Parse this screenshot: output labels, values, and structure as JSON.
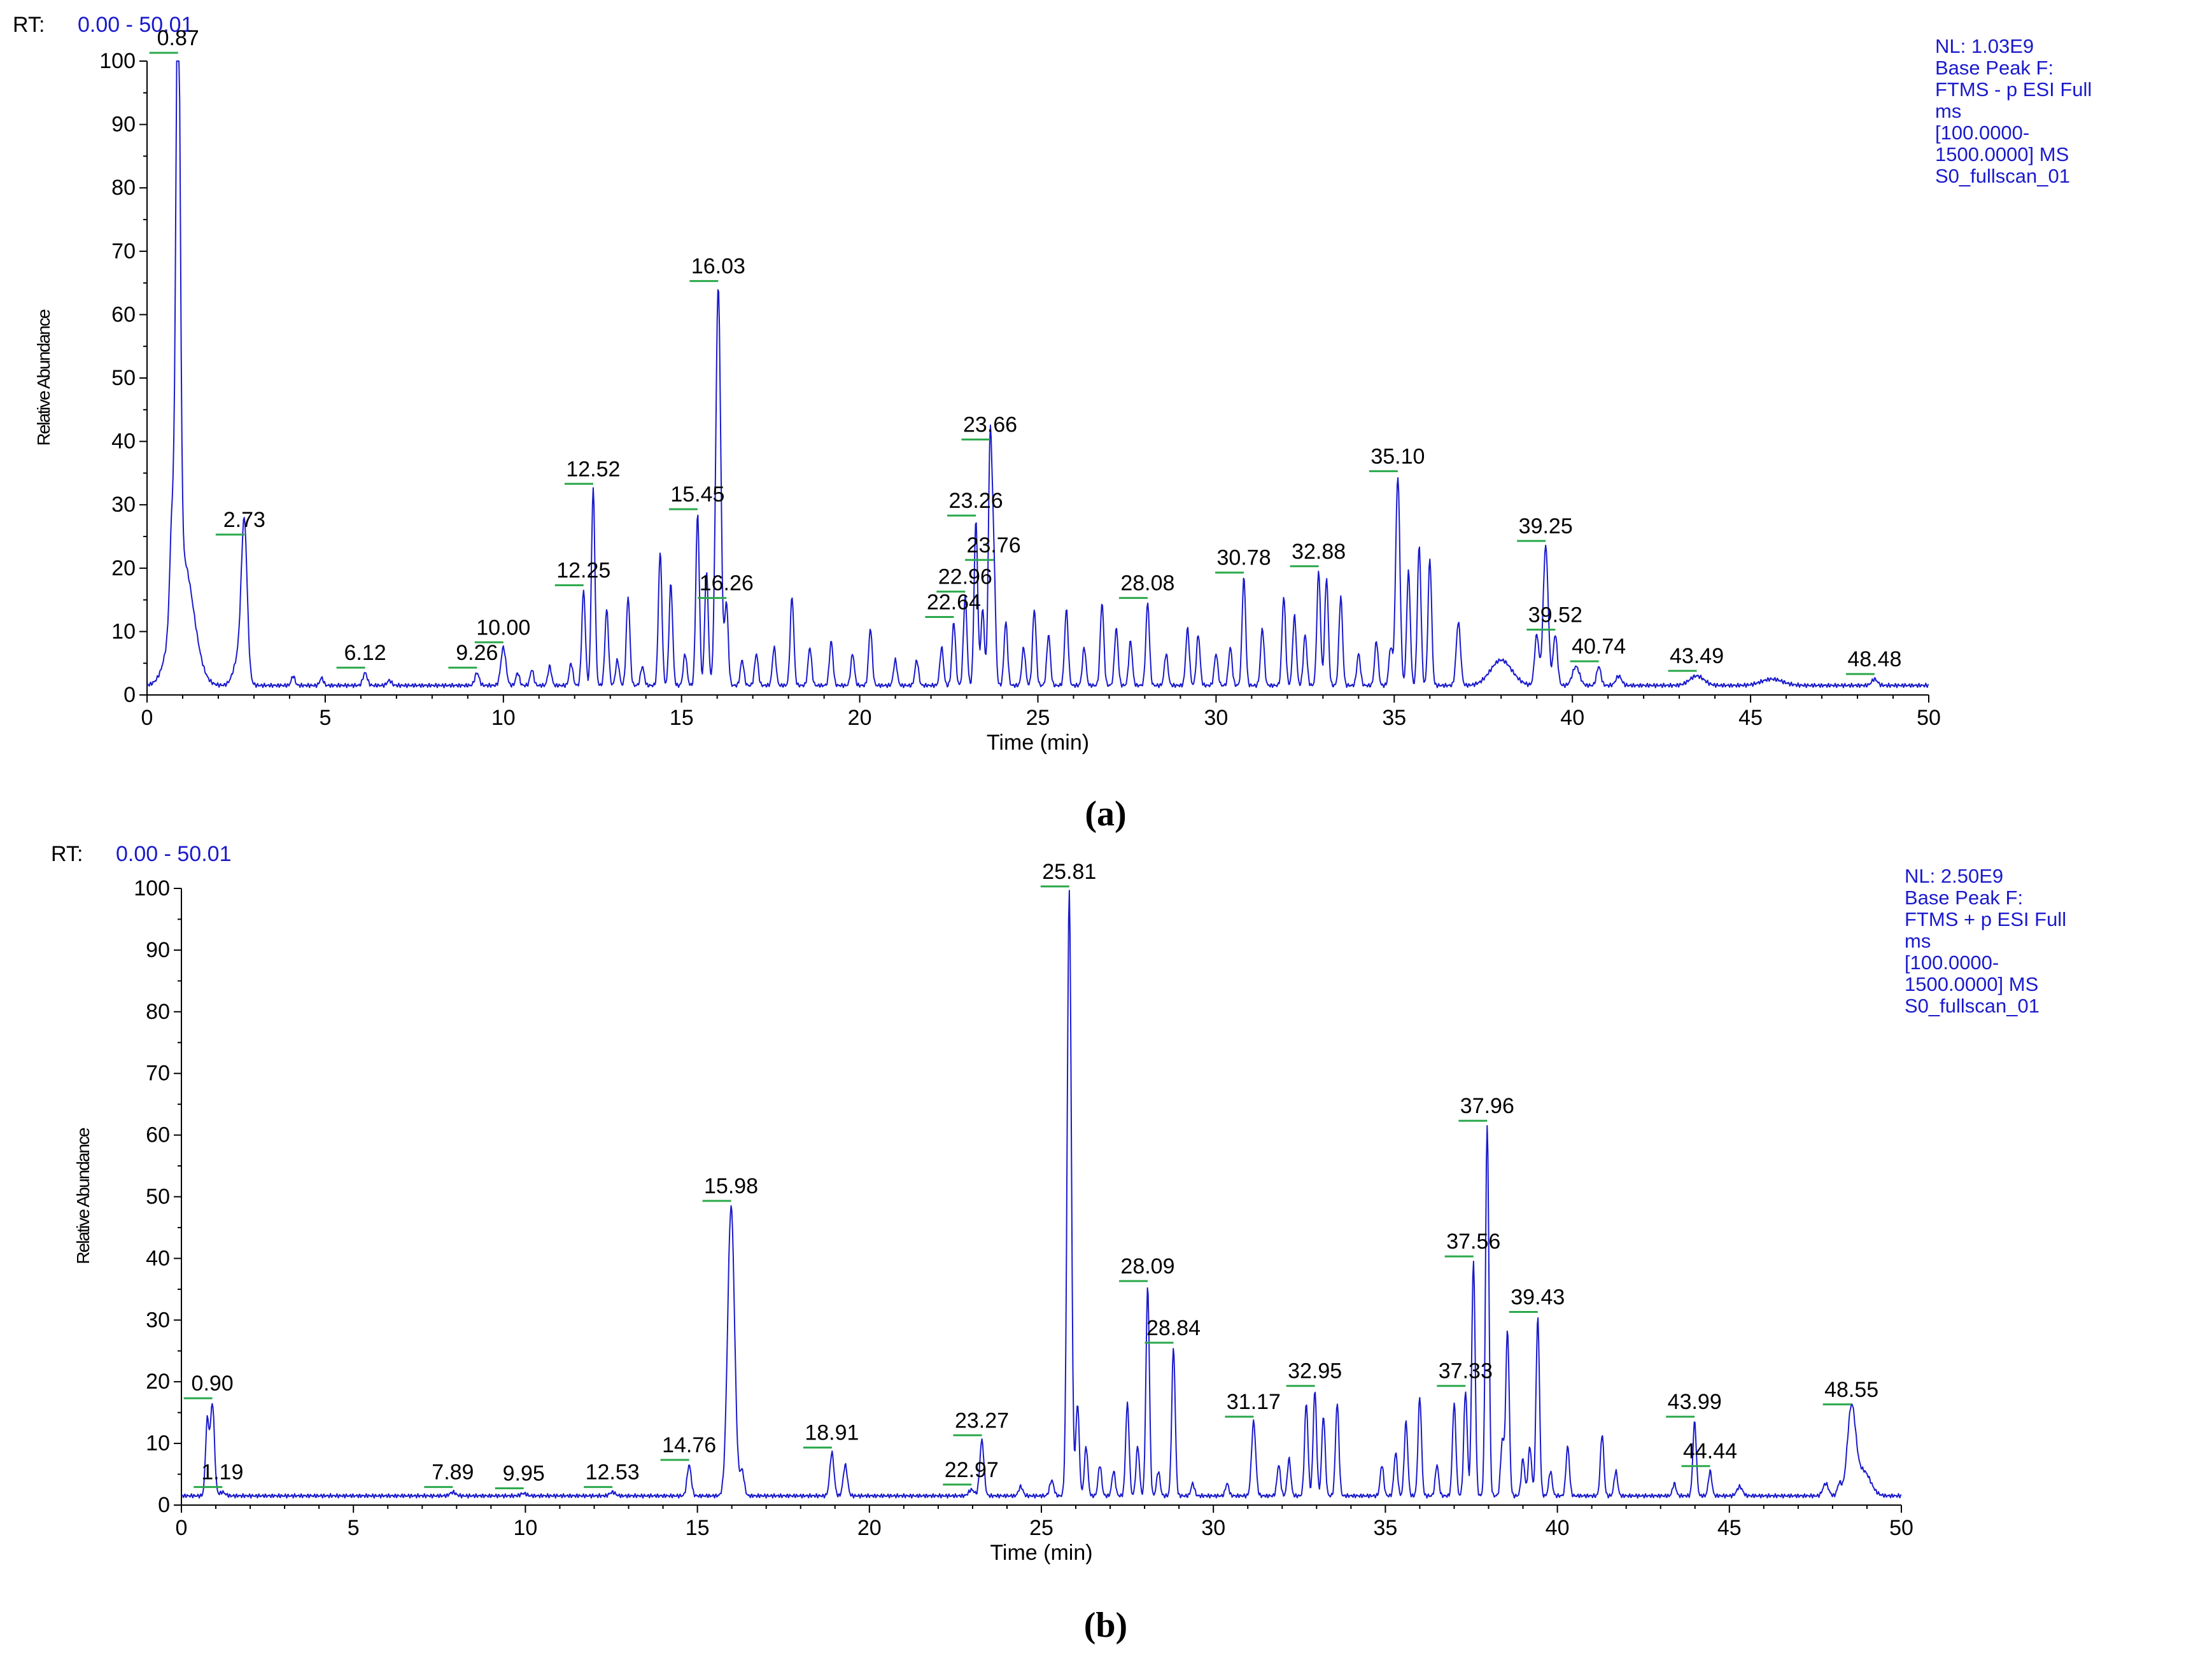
{
  "chart_data": [
    {
      "type": "line",
      "panel_label": "(a)",
      "rt_label": "RT:",
      "rt_range": "0.00 - 50.01",
      "info_lines": [
        "NL: 1.03E9",
        "Base Peak F:",
        "FTMS - p ESI Full",
        "ms",
        "[100.0000-",
        "1500.0000]  MS",
        "S0_fullscan_01"
      ],
      "xlabel": "Time (min)",
      "ylabel": "Relative Abundance",
      "xlim": [
        0,
        50
      ],
      "ylim": [
        0,
        100
      ],
      "xticks": [
        0,
        5,
        10,
        15,
        20,
        25,
        30,
        35,
        40,
        45,
        50
      ],
      "yticks": [
        0,
        10,
        20,
        30,
        40,
        50,
        60,
        70,
        80,
        90,
        100
      ],
      "baseline": 1.5,
      "peaks": [
        {
          "rt": 0.7,
          "h": 15,
          "w": 0.06
        },
        {
          "rt": 0.87,
          "h": 99,
          "w": 0.06,
          "label": "0.87"
        },
        {
          "rt": 1.0,
          "h": 20,
          "w": 0.3
        },
        {
          "rt": 2.73,
          "h": 23,
          "w": 0.08,
          "label": "2.73"
        },
        {
          "rt": 2.6,
          "h": 5,
          "w": 0.15
        },
        {
          "rt": 4.1,
          "h": 1.5,
          "w": 0.05
        },
        {
          "rt": 4.9,
          "h": 1.2,
          "w": 0.05
        },
        {
          "rt": 6.12,
          "h": 2,
          "w": 0.06,
          "label": "6.12"
        },
        {
          "rt": 6.8,
          "h": 0.8,
          "w": 0.06
        },
        {
          "rt": 9.26,
          "h": 2,
          "w": 0.06,
          "label": "9.26"
        },
        {
          "rt": 10.0,
          "h": 6,
          "w": 0.07,
          "label": "10.00"
        },
        {
          "rt": 10.4,
          "h": 2,
          "w": 0.05
        },
        {
          "rt": 10.8,
          "h": 2.5,
          "w": 0.05
        },
        {
          "rt": 11.3,
          "h": 3,
          "w": 0.05
        },
        {
          "rt": 11.9,
          "h": 3.5,
          "w": 0.05
        },
        {
          "rt": 12.25,
          "h": 15,
          "w": 0.05,
          "label": "12.25"
        },
        {
          "rt": 12.52,
          "h": 31,
          "w": 0.05,
          "label": "12.52"
        },
        {
          "rt": 12.9,
          "h": 12,
          "w": 0.05
        },
        {
          "rt": 13.2,
          "h": 4,
          "w": 0.05
        },
        {
          "rt": 13.5,
          "h": 14,
          "w": 0.05
        },
        {
          "rt": 13.9,
          "h": 3,
          "w": 0.05
        },
        {
          "rt": 14.4,
          "h": 21,
          "w": 0.05
        },
        {
          "rt": 14.7,
          "h": 16,
          "w": 0.05
        },
        {
          "rt": 15.1,
          "h": 5,
          "w": 0.05
        },
        {
          "rt": 15.45,
          "h": 27,
          "w": 0.05,
          "label": "15.45"
        },
        {
          "rt": 15.7,
          "h": 18,
          "w": 0.05
        },
        {
          "rt": 16.03,
          "h": 63,
          "w": 0.07,
          "label": "16.03"
        },
        {
          "rt": 16.26,
          "h": 13,
          "w": 0.05,
          "label": "16.26"
        },
        {
          "rt": 16.7,
          "h": 4,
          "w": 0.05
        },
        {
          "rt": 17.1,
          "h": 5,
          "w": 0.05
        },
        {
          "rt": 17.6,
          "h": 6,
          "w": 0.05
        },
        {
          "rt": 18.1,
          "h": 14,
          "w": 0.05
        },
        {
          "rt": 18.6,
          "h": 6,
          "w": 0.05
        },
        {
          "rt": 19.2,
          "h": 7,
          "w": 0.05
        },
        {
          "rt": 19.8,
          "h": 5,
          "w": 0.05
        },
        {
          "rt": 20.3,
          "h": 9,
          "w": 0.05
        },
        {
          "rt": 21.0,
          "h": 4,
          "w": 0.05
        },
        {
          "rt": 21.6,
          "h": 4,
          "w": 0.05
        },
        {
          "rt": 22.3,
          "h": 6,
          "w": 0.05
        },
        {
          "rt": 22.64,
          "h": 10,
          "w": 0.05,
          "label": "22.64"
        },
        {
          "rt": 22.96,
          "h": 14,
          "w": 0.05,
          "label": "22.96"
        },
        {
          "rt": 23.26,
          "h": 26,
          "w": 0.05,
          "label": "23.26"
        },
        {
          "rt": 23.45,
          "h": 12,
          "w": 0.05
        },
        {
          "rt": 23.66,
          "h": 38,
          "w": 0.05,
          "label": "23.66"
        },
        {
          "rt": 23.76,
          "h": 19,
          "w": 0.05,
          "label": "23.76"
        },
        {
          "rt": 24.1,
          "h": 10,
          "w": 0.05
        },
        {
          "rt": 24.6,
          "h": 6,
          "w": 0.05
        },
        {
          "rt": 24.9,
          "h": 12,
          "w": 0.05
        },
        {
          "rt": 25.3,
          "h": 8,
          "w": 0.05
        },
        {
          "rt": 25.8,
          "h": 12,
          "w": 0.05
        },
        {
          "rt": 26.3,
          "h": 6,
          "w": 0.05
        },
        {
          "rt": 26.8,
          "h": 13,
          "w": 0.05
        },
        {
          "rt": 27.2,
          "h": 9,
          "w": 0.05
        },
        {
          "rt": 27.6,
          "h": 7,
          "w": 0.05
        },
        {
          "rt": 28.08,
          "h": 13,
          "w": 0.05,
          "label": "28.08"
        },
        {
          "rt": 28.6,
          "h": 5,
          "w": 0.05
        },
        {
          "rt": 29.2,
          "h": 9,
          "w": 0.05
        },
        {
          "rt": 29.5,
          "h": 8,
          "w": 0.05
        },
        {
          "rt": 30.0,
          "h": 5,
          "w": 0.05
        },
        {
          "rt": 30.4,
          "h": 6,
          "w": 0.05
        },
        {
          "rt": 30.78,
          "h": 17,
          "w": 0.05,
          "label": "30.78"
        },
        {
          "rt": 31.3,
          "h": 9,
          "w": 0.05
        },
        {
          "rt": 31.9,
          "h": 14,
          "w": 0.05
        },
        {
          "rt": 32.2,
          "h": 11,
          "w": 0.05
        },
        {
          "rt": 32.5,
          "h": 8,
          "w": 0.05
        },
        {
          "rt": 32.88,
          "h": 18,
          "w": 0.05,
          "label": "32.88"
        },
        {
          "rt": 33.1,
          "h": 17,
          "w": 0.05
        },
        {
          "rt": 33.5,
          "h": 14,
          "w": 0.05
        },
        {
          "rt": 34.0,
          "h": 5,
          "w": 0.05
        },
        {
          "rt": 34.5,
          "h": 7,
          "w": 0.05
        },
        {
          "rt": 34.9,
          "h": 6,
          "w": 0.05
        },
        {
          "rt": 35.1,
          "h": 33,
          "w": 0.06,
          "label": "35.10"
        },
        {
          "rt": 35.4,
          "h": 18,
          "w": 0.05
        },
        {
          "rt": 35.7,
          "h": 22,
          "w": 0.05
        },
        {
          "rt": 36.0,
          "h": 20,
          "w": 0.05
        },
        {
          "rt": 36.8,
          "h": 10,
          "w": 0.06
        },
        {
          "rt": 38.0,
          "h": 4,
          "w": 0.3
        },
        {
          "rt": 39.0,
          "h": 8,
          "w": 0.06
        },
        {
          "rt": 39.25,
          "h": 22,
          "w": 0.07,
          "label": "39.25"
        },
        {
          "rt": 39.52,
          "h": 8,
          "w": 0.06,
          "label": "39.52"
        },
        {
          "rt": 40.1,
          "h": 3,
          "w": 0.1
        },
        {
          "rt": 40.74,
          "h": 3,
          "w": 0.06,
          "label": "40.74"
        },
        {
          "rt": 41.3,
          "h": 1.5,
          "w": 0.08
        },
        {
          "rt": 43.49,
          "h": 1.5,
          "w": 0.2,
          "label": "43.49"
        },
        {
          "rt": 45.6,
          "h": 1,
          "w": 0.3
        },
        {
          "rt": 48.48,
          "h": 1,
          "w": 0.08,
          "label": "48.48"
        }
      ]
    },
    {
      "type": "line",
      "panel_label": "(b)",
      "rt_label": "RT:",
      "rt_range": "0.00 - 50.01",
      "info_lines": [
        "NL: 2.50E9",
        "Base Peak F:",
        "FTMS + p ESI Full",
        "ms",
        "[100.0000-",
        "1500.0000]  MS",
        "S0_fullscan_01"
      ],
      "xlabel": "Time (min)",
      "ylabel": "Relative Abundance",
      "xlim": [
        0,
        50
      ],
      "ylim": [
        0,
        100
      ],
      "xticks": [
        0,
        5,
        10,
        15,
        20,
        25,
        30,
        35,
        40,
        45,
        50
      ],
      "yticks": [
        0,
        10,
        20,
        30,
        40,
        50,
        60,
        70,
        80,
        90,
        100
      ],
      "baseline": 1.5,
      "peaks": [
        {
          "rt": 0.75,
          "h": 12,
          "w": 0.05
        },
        {
          "rt": 0.9,
          "h": 15,
          "w": 0.06,
          "label": "0.90"
        },
        {
          "rt": 1.19,
          "h": 0.6,
          "w": 0.08,
          "label": "1.19"
        },
        {
          "rt": 7.89,
          "h": 0.6,
          "w": 0.08,
          "label": "7.89"
        },
        {
          "rt": 9.95,
          "h": 0.4,
          "w": 0.08,
          "label": "9.95"
        },
        {
          "rt": 12.53,
          "h": 0.6,
          "w": 0.08,
          "label": "12.53"
        },
        {
          "rt": 14.76,
          "h": 5,
          "w": 0.06,
          "label": "14.76"
        },
        {
          "rt": 15.98,
          "h": 47,
          "w": 0.1,
          "label": "15.98"
        },
        {
          "rt": 16.3,
          "h": 4,
          "w": 0.06
        },
        {
          "rt": 18.91,
          "h": 7,
          "w": 0.06,
          "label": "18.91"
        },
        {
          "rt": 19.3,
          "h": 5,
          "w": 0.06
        },
        {
          "rt": 22.97,
          "h": 1,
          "w": 0.08,
          "label": "22.97"
        },
        {
          "rt": 23.27,
          "h": 9,
          "w": 0.06,
          "label": "23.27"
        },
        {
          "rt": 24.4,
          "h": 1.5,
          "w": 0.06
        },
        {
          "rt": 25.3,
          "h": 2.5,
          "w": 0.06
        },
        {
          "rt": 25.81,
          "h": 98,
          "w": 0.06,
          "label": "25.81"
        },
        {
          "rt": 26.05,
          "h": 15,
          "w": 0.05
        },
        {
          "rt": 26.3,
          "h": 8,
          "w": 0.05
        },
        {
          "rt": 26.7,
          "h": 5,
          "w": 0.05
        },
        {
          "rt": 27.1,
          "h": 4,
          "w": 0.05
        },
        {
          "rt": 27.5,
          "h": 15,
          "w": 0.05
        },
        {
          "rt": 27.8,
          "h": 8,
          "w": 0.05
        },
        {
          "rt": 28.09,
          "h": 34,
          "w": 0.05,
          "label": "28.09"
        },
        {
          "rt": 28.4,
          "h": 4,
          "w": 0.05
        },
        {
          "rt": 28.84,
          "h": 24,
          "w": 0.05,
          "label": "28.84"
        },
        {
          "rt": 29.4,
          "h": 2,
          "w": 0.05
        },
        {
          "rt": 30.4,
          "h": 2,
          "w": 0.05
        },
        {
          "rt": 31.17,
          "h": 12,
          "w": 0.06,
          "label": "31.17"
        },
        {
          "rt": 31.9,
          "h": 5,
          "w": 0.05
        },
        {
          "rt": 32.2,
          "h": 6,
          "w": 0.05
        },
        {
          "rt": 32.7,
          "h": 15,
          "w": 0.05
        },
        {
          "rt": 32.95,
          "h": 17,
          "w": 0.05,
          "label": "32.95"
        },
        {
          "rt": 33.2,
          "h": 13,
          "w": 0.05
        },
        {
          "rt": 33.6,
          "h": 15,
          "w": 0.05
        },
        {
          "rt": 34.9,
          "h": 5,
          "w": 0.05
        },
        {
          "rt": 35.3,
          "h": 7,
          "w": 0.05
        },
        {
          "rt": 35.6,
          "h": 12,
          "w": 0.05
        },
        {
          "rt": 36.0,
          "h": 16,
          "w": 0.05
        },
        {
          "rt": 36.5,
          "h": 5,
          "w": 0.05
        },
        {
          "rt": 37.0,
          "h": 15,
          "w": 0.05
        },
        {
          "rt": 37.33,
          "h": 17,
          "w": 0.05,
          "label": "37.33"
        },
        {
          "rt": 37.56,
          "h": 38,
          "w": 0.05,
          "label": "37.56"
        },
        {
          "rt": 37.96,
          "h": 60,
          "w": 0.05,
          "label": "37.96"
        },
        {
          "rt": 38.4,
          "h": 9,
          "w": 0.05
        },
        {
          "rt": 38.55,
          "h": 27,
          "w": 0.05
        },
        {
          "rt": 39.0,
          "h": 6,
          "w": 0.05
        },
        {
          "rt": 39.2,
          "h": 8,
          "w": 0.05
        },
        {
          "rt": 39.43,
          "h": 29,
          "w": 0.05,
          "label": "39.43"
        },
        {
          "rt": 39.8,
          "h": 4,
          "w": 0.05
        },
        {
          "rt": 40.3,
          "h": 8,
          "w": 0.05
        },
        {
          "rt": 41.3,
          "h": 10,
          "w": 0.05
        },
        {
          "rt": 41.7,
          "h": 4,
          "w": 0.05
        },
        {
          "rt": 43.4,
          "h": 2,
          "w": 0.05
        },
        {
          "rt": 43.99,
          "h": 12,
          "w": 0.05,
          "label": "43.99"
        },
        {
          "rt": 44.44,
          "h": 4,
          "w": 0.05,
          "label": "44.44"
        },
        {
          "rt": 45.3,
          "h": 1.5,
          "w": 0.08
        },
        {
          "rt": 47.8,
          "h": 2,
          "w": 0.08
        },
        {
          "rt": 48.2,
          "h": 2,
          "w": 0.06
        },
        {
          "rt": 48.55,
          "h": 14,
          "w": 0.12,
          "label": "48.55"
        },
        {
          "rt": 48.9,
          "h": 4,
          "w": 0.2
        }
      ]
    }
  ]
}
